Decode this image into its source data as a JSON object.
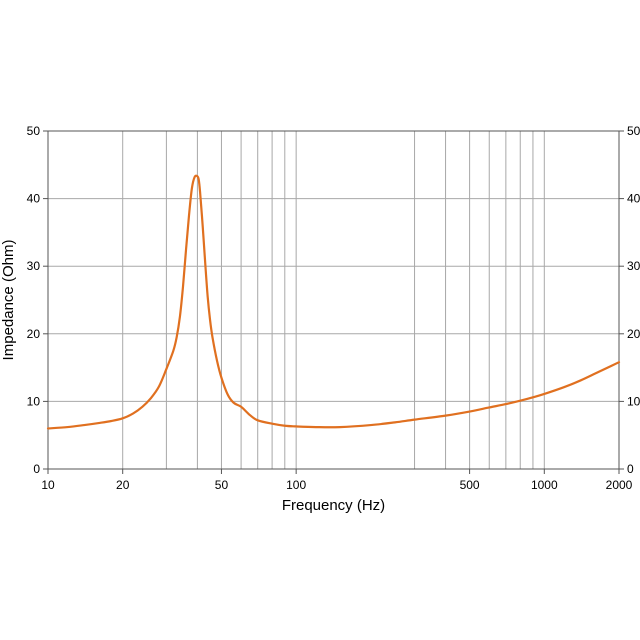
{
  "chart_data": {
    "type": "line",
    "title": "",
    "xlabel": "Frequency (Hz)",
    "ylabel": "Impedance (Ohm)",
    "xscale": "log",
    "xlim": [
      10,
      2000
    ],
    "ylim": [
      0,
      50
    ],
    "grid": true,
    "x_ticks": [
      10,
      20,
      50,
      100,
      500,
      1000,
      2000
    ],
    "x_tick_labels": [
      "10",
      "20",
      "50",
      "100",
      "500",
      "1000",
      "2000"
    ],
    "x_gridlines": [
      20,
      30,
      40,
      50,
      60,
      70,
      80,
      90,
      100,
      300,
      400,
      500,
      600,
      700,
      800,
      900,
      1000
    ],
    "y_ticks": [
      0,
      10,
      20,
      30,
      40,
      50
    ],
    "y_tick_labels": [
      "0",
      "10",
      "20",
      "30",
      "40",
      "50"
    ],
    "series": [
      {
        "name": "Impedance",
        "color": "#e07020",
        "x": [
          10,
          12,
          14,
          16,
          18,
          20,
          22,
          24,
          26,
          28,
          30,
          32,
          33,
          34,
          35,
          36,
          37,
          38,
          39,
          40,
          40.5,
          41,
          42,
          43,
          44,
          45,
          46,
          48,
          50,
          53,
          56,
          60,
          65,
          70,
          80,
          90,
          100,
          120,
          150,
          200,
          250,
          300,
          400,
          500,
          600,
          700,
          800,
          900,
          1000,
          1200,
          1400,
          1600,
          1800,
          2000
        ],
        "y": [
          6.0,
          6.2,
          6.5,
          6.8,
          7.1,
          7.5,
          8.2,
          9.2,
          10.5,
          12.2,
          14.8,
          17.5,
          19.5,
          22.5,
          27.0,
          32.5,
          37.5,
          41.5,
          43.2,
          43.3,
          42.8,
          41.0,
          36.0,
          30.5,
          25.5,
          22.0,
          19.5,
          16.0,
          13.5,
          11.0,
          9.8,
          9.2,
          8.0,
          7.2,
          6.7,
          6.4,
          6.3,
          6.2,
          6.2,
          6.5,
          6.9,
          7.3,
          7.9,
          8.5,
          9.1,
          9.6,
          10.1,
          10.6,
          11.1,
          12.1,
          13.1,
          14.1,
          15.0,
          15.8
        ]
      }
    ]
  }
}
